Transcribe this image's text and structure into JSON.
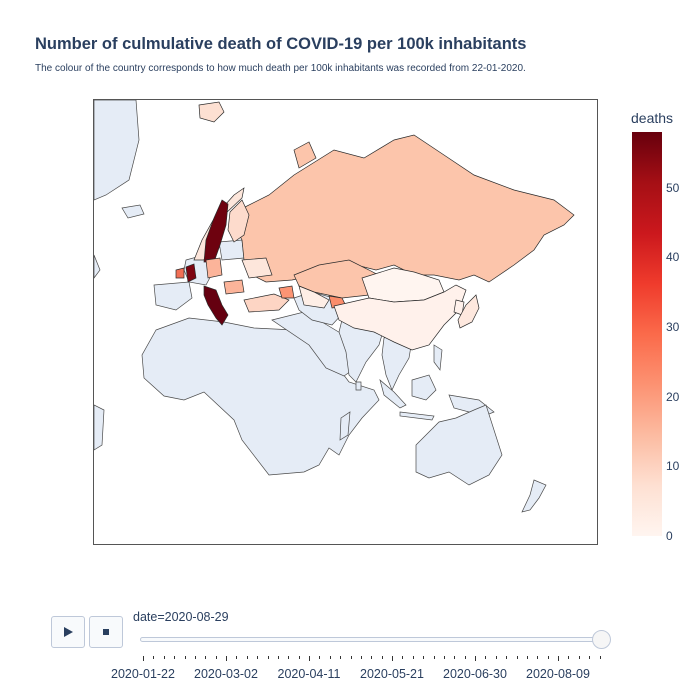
{
  "title": "Number of culmulative death of COVID-19 per 100k inhabitants",
  "subtitle": "The colour of the country corresponds to how much death per 100k inhabitants was recorded from 22-01-2020.",
  "colorbar": {
    "title": "deaths",
    "ticks": [
      "0",
      "10",
      "20",
      "30",
      "40",
      "50"
    ],
    "range": [
      0,
      58
    ],
    "colorscale": "Reds"
  },
  "map": {
    "projection": "natural-earth",
    "land_color": "#e5ecf6",
    "countries": [
      {
        "name": "Sweden",
        "deaths": 57
      },
      {
        "name": "Italy",
        "deaths": 58
      },
      {
        "name": "United Kingdom",
        "deaths": 62
      },
      {
        "name": "Russia",
        "deaths": 9
      },
      {
        "name": "Kazakhstan",
        "deaths": 9
      },
      {
        "name": "Kyrgyzstan",
        "deaths": 25
      },
      {
        "name": "Norway",
        "deaths": 5
      },
      {
        "name": "Finland",
        "deaths": 6
      },
      {
        "name": "Germany",
        "deaths": 11
      },
      {
        "name": "Ukraine",
        "deaths": 5
      },
      {
        "name": "Romania",
        "deaths": 12
      },
      {
        "name": "Turkey",
        "deaths": 7
      },
      {
        "name": "Armenia",
        "deaths": 24
      },
      {
        "name": "Uzbekistan",
        "deaths": 2
      },
      {
        "name": "Mongolia",
        "deaths": 0
      },
      {
        "name": "China",
        "deaths": 0.3
      },
      {
        "name": "Japan",
        "deaths": 0.9
      }
    ]
  },
  "slider": {
    "current_label": "date=2020-08-29",
    "value_fraction": 1.0,
    "tick_labels": [
      "2020-01-22",
      "2020-03-02",
      "2020-04-11",
      "2020-05-21",
      "2020-06-30",
      "2020-08-09"
    ]
  },
  "controls": {
    "play_icon": "play-icon",
    "stop_icon": "stop-icon"
  }
}
